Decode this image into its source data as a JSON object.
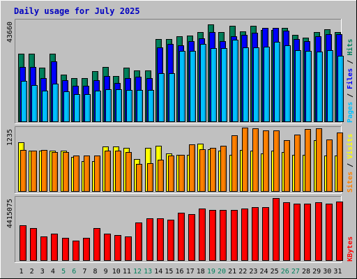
{
  "chart_data": {
    "type": "bar",
    "title": "Daily usage for July 2025",
    "categories": [
      "1",
      "2",
      "3",
      "4",
      "5",
      "6",
      "7",
      "8",
      "9",
      "10",
      "11",
      "12",
      "13",
      "14",
      "15",
      "16",
      "17",
      "18",
      "19",
      "20",
      "21",
      "22",
      "23",
      "24",
      "25",
      "26",
      "27",
      "28",
      "29",
      "30",
      "31"
    ],
    "weekend_days": [
      "5",
      "6",
      "12",
      "13",
      "19",
      "20",
      "26",
      "27"
    ],
    "colors": {
      "background": "#c0c0c0",
      "title": "#0000c0",
      "hits": "#00805c",
      "files": "#0000ff",
      "pages": "#00c0ff",
      "visits": "#ffff00",
      "sites": "#ff8000",
      "kbytes": "#ff0000",
      "weekday_label": "#000000",
      "weekend_label": "#00805c"
    },
    "panels": [
      {
        "id": "hits-files-pages",
        "ymax_label": "43660",
        "ymax": 43660,
        "legend": [
          {
            "text": "Pages",
            "color": "#00c0ff"
          },
          {
            "text": " / ",
            "color": "#000000"
          },
          {
            "text": "Files",
            "color": "#0000ff"
          },
          {
            "text": " / ",
            "color": "#000000"
          },
          {
            "text": "Hits",
            "color": "#00805c"
          }
        ],
        "series": [
          {
            "name": "Hits",
            "color": "#00805c",
            "values": [
              29400,
              29400,
              23400,
              29400,
              20500,
              19000,
              19000,
              22000,
              23800,
              20000,
              23500,
              22200,
              22200,
              35800,
              35800,
              37000,
              37200,
              38700,
              42300,
              38700,
              41600,
              39000,
              41700,
              39800,
              39800,
              40500,
              37700,
              36500,
              38800,
              40000,
              38800
            ]
          },
          {
            "values": [
              23700,
              23900,
              19000,
              26200,
              18200,
              15700,
              15700,
              18000,
              20000,
              17000,
              19000,
              19500,
              19000,
              32100,
              33600,
              33200,
              34900,
              36200,
              38700,
              35000,
              37000,
              37500,
              38500,
              40500,
              40500,
              39500,
              35900,
              34800,
              36900,
              38000,
              38000
            ],
            "name": "Files",
            "color": "#0000ff"
          },
          {
            "name": "Pages",
            "color": "#00c0ff",
            "values": [
              17900,
              15900,
              13500,
              16600,
              13100,
              12000,
              12000,
              13500,
              14200,
              14200,
              14000,
              13800,
              13800,
              21000,
              21000,
              30600,
              30600,
              33800,
              32000,
              32000,
              35400,
              32200,
              32200,
              32400,
              34700,
              33000,
              31100,
              30700,
              30300,
              31000,
              28500
            ]
          }
        ]
      },
      {
        "id": "visits-sites",
        "ymax_label": "1235",
        "ymax": 1235,
        "legend": [
          {
            "text": "Sites",
            "color": "#ff8000"
          },
          {
            "text": " / ",
            "color": "#000000"
          },
          {
            "text": "Visits",
            "color": "#ffff00"
          }
        ],
        "series": [
          {
            "name": "Visits",
            "color": "#ffff00",
            "values": [
              960,
              800,
              800,
              800,
              800,
              680,
              600,
              600,
              880,
              880,
              860,
              640,
              860,
              900,
              740,
              720,
              720,
              930,
              830,
              800,
              720,
              820,
              800,
              750,
              800,
              780,
              720,
              720,
              1000,
              700,
              700
            ]
          },
          {
            "name": "Sites",
            "color": "#ff8000",
            "values": [
              820,
              800,
              820,
              780,
              780,
              700,
              710,
              710,
              800,
              800,
              780,
              540,
              550,
              620,
              700,
              720,
              920,
              830,
              850,
              890,
              1100,
              1250,
              1240,
              1200,
              1200,
              1010,
              1110,
              1220,
              1230,
              1020,
              1150
            ]
          }
        ]
      },
      {
        "id": "kbytes",
        "ymax_label": "4415075",
        "ymax": 4415075,
        "legend": [
          {
            "text": "KBytes",
            "color": "#ff0000"
          }
        ],
        "series": [
          {
            "name": "KBytes",
            "color": "#ff0000",
            "values": [
              2500000,
              2300000,
              1700000,
              1900000,
              1600000,
              1400000,
              1600000,
              2300000,
              1900000,
              1800000,
              1700000,
              2700000,
              3000000,
              3000000,
              2900000,
              3400000,
              3300000,
              3700000,
              3600000,
              3600000,
              3600000,
              3700000,
              3800000,
              3800000,
              4415075,
              4100000,
              4000000,
              4000000,
              4100000,
              4000000,
              4150000
            ]
          }
        ]
      }
    ]
  }
}
